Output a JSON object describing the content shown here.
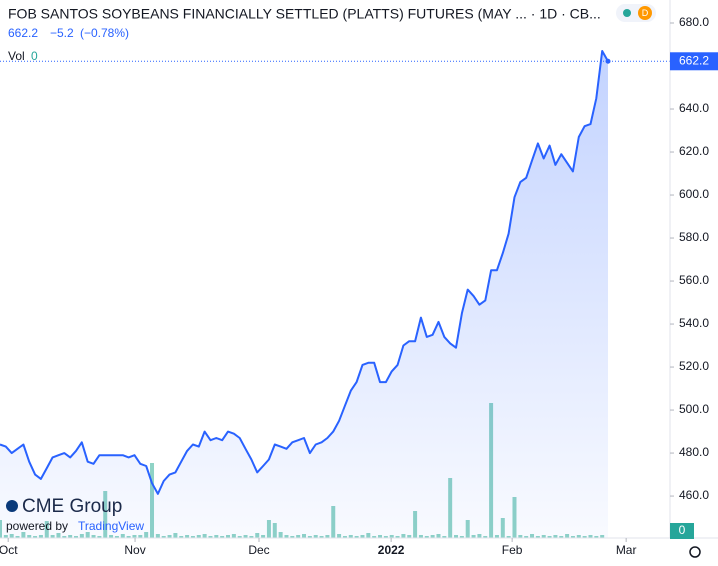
{
  "chart_data": {
    "type": "line",
    "title": "FOB SANTOS SOYBEANS FINANCIALLY SETTLED (PLATTS) FUTURES (MAY ... · 1D · CB...",
    "last": "662.2",
    "change": "−5.2",
    "change_pct": "(−0.78%)",
    "badge": "D",
    "logo": "CME Group",
    "powered_by": "powered by",
    "powered_brand": "TradingView",
    "x": [
      0,
      1,
      2,
      3,
      4,
      5,
      6,
      7,
      8,
      9,
      10,
      11,
      12,
      13,
      14,
      15,
      16,
      17,
      18,
      19,
      20,
      21,
      22,
      23,
      24,
      25,
      26,
      27,
      28,
      29,
      30,
      31,
      32,
      33,
      34,
      35,
      36,
      37,
      38,
      39,
      40,
      41,
      42,
      43,
      44,
      45,
      46,
      47,
      48,
      49,
      50,
      51,
      52,
      53,
      54,
      55,
      56,
      57,
      58,
      59,
      60,
      61,
      62,
      63,
      64,
      65,
      66,
      67,
      68,
      69,
      70,
      71,
      72,
      73,
      74,
      75,
      76,
      77,
      78,
      79,
      80,
      81,
      82,
      83,
      84,
      85,
      86,
      87,
      88,
      89,
      90,
      91,
      92,
      93,
      94,
      95,
      96,
      97,
      98,
      99,
      100,
      101,
      102,
      103,
      104
    ],
    "series": [
      {
        "color": "#2962ff",
        "values": [
          484,
          483,
          480,
          482,
          484,
          476,
          470,
          468,
          473,
          478,
          479,
          480,
          478,
          481,
          485,
          476,
          475,
          479,
          479,
          479,
          479,
          479,
          478,
          479,
          475,
          474,
          466,
          461,
          467,
          470,
          471,
          476,
          481,
          484,
          483,
          490,
          486,
          487,
          486,
          490,
          489,
          487,
          482,
          477,
          471,
          474,
          477,
          484,
          483,
          482,
          485,
          486,
          487,
          480,
          484,
          485,
          487,
          490,
          495,
          502,
          509,
          513,
          521,
          522,
          522,
          513,
          513,
          518,
          521,
          530,
          532,
          532,
          543,
          534,
          535,
          541,
          534,
          531,
          529,
          545,
          556,
          553,
          549,
          551,
          565,
          565,
          573,
          582,
          599,
          606,
          608,
          616,
          624,
          617,
          623,
          614,
          619,
          615,
          611,
          627,
          632,
          633,
          645,
          667,
          662.2
        ]
      },
      {
        "name": "Vol",
        "color": "#8fd3c6",
        "axis": "y2",
        "values": [
          18,
          3,
          4,
          2,
          6,
          3,
          2,
          3,
          17,
          3,
          5,
          2,
          3,
          2,
          4,
          6,
          3,
          2,
          47,
          3,
          2,
          4,
          2,
          3,
          3,
          6,
          75,
          4,
          2,
          3,
          5,
          2,
          3,
          2,
          3,
          4,
          2,
          3,
          2,
          3,
          4,
          2,
          3,
          2,
          5,
          3,
          18,
          15,
          6,
          3,
          2,
          3,
          4,
          2,
          3,
          2,
          3,
          32,
          4,
          2,
          3,
          2,
          3,
          5,
          2,
          3,
          2,
          3,
          2,
          4,
          3,
          27,
          3,
          2,
          3,
          4,
          2,
          60,
          3,
          2,
          18,
          3,
          4,
          2,
          135,
          3,
          20,
          2,
          41,
          3,
          2,
          4,
          2,
          3,
          2,
          3,
          2,
          4,
          2,
          3,
          2,
          3,
          2,
          3,
          0
        ]
      }
    ],
    "xlim": [
      0,
      114.6
    ],
    "xticks": [
      {
        "value": 1.4,
        "label": "Oct"
      },
      {
        "value": 23.1,
        "label": "Nov"
      },
      {
        "value": 44.3,
        "label": "Dec"
      },
      {
        "value": 66.9,
        "label": "2022"
      },
      {
        "value": 87.6,
        "label": "Feb"
      },
      {
        "value": 107.1,
        "label": "Mar"
      }
    ],
    "ylim": [
      440.5,
      690.7
    ],
    "yticks": [
      {
        "value": 460,
        "label": "460.0"
      },
      {
        "value": 480,
        "label": "480.0"
      },
      {
        "value": 500,
        "label": "500.0"
      },
      {
        "value": 520,
        "label": "520.0"
      },
      {
        "value": 540,
        "label": "540.0"
      },
      {
        "value": 560,
        "label": "560.0"
      },
      {
        "value": 580,
        "label": "580.0"
      },
      {
        "value": 600,
        "label": "600.0"
      },
      {
        "value": 620,
        "label": "620.0"
      },
      {
        "value": 640,
        "label": "640.0"
      },
      {
        "value": 660,
        "label": "660.0"
      },
      {
        "value": 680,
        "label": "680.0"
      }
    ],
    "y2lim": [
      0,
      300
    ]
  }
}
